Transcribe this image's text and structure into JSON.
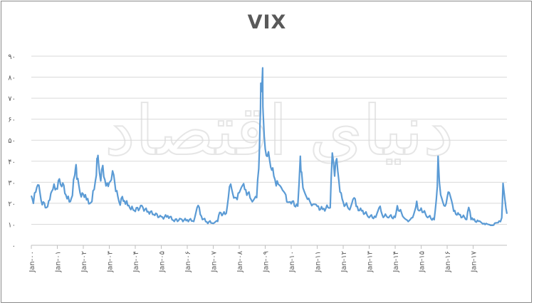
{
  "chart_data": {
    "type": "line",
    "title": "VIX",
    "xlabel": "",
    "ylabel": "",
    "ylim": [
      0,
      90
    ],
    "y_ticks": [
      "۰",
      "۱۰",
      "۲۰",
      "۳۰",
      "۴۰",
      "۵۰",
      "۶۰",
      "۷۰",
      "۸۰",
      "۹۰"
    ],
    "y_tick_values": [
      0,
      10,
      20,
      30,
      40,
      50,
      60,
      70,
      80,
      90
    ],
    "x_ticks": [
      "Jan-۰۰",
      "Jan-۰۱",
      "Jan-۰۲",
      "Jan-۰۳",
      "Jan-۰۴",
      "Jan-۰۵",
      "Jan-۰۶",
      "Jan-۰۷",
      "Jan-۰۸",
      "Jan-۰۹",
      "Jan-۱۰",
      "Jan-۱۱",
      "Jan-۱۲",
      "Jan-۱۳",
      "Jan-۱۴",
      "Jan-۱۵",
      "Jan-۱۶",
      "Jan-۱۷"
    ],
    "x_tick_years": [
      2000,
      2001,
      2002,
      2003,
      2004,
      2005,
      2006,
      2007,
      2008,
      2009,
      2010,
      2011,
      2012,
      2013,
      2014,
      2015,
      2016,
      2017
    ],
    "xlim": [
      2000.0,
      2018.3
    ],
    "grid": true,
    "series_color": "#5b9bd5",
    "series": [
      {
        "name": "",
        "x": [
          2000.0,
          2000.08,
          2000.17,
          2000.25,
          2000.33,
          2000.42,
          2000.5,
          2000.58,
          2000.67,
          2000.75,
          2000.83,
          2000.92,
          2001.0,
          2001.08,
          2001.17,
          2001.25,
          2001.33,
          2001.42,
          2001.5,
          2001.58,
          2001.67,
          2001.72,
          2001.75,
          2001.83,
          2001.92,
          2002.0,
          2002.08,
          2002.17,
          2002.25,
          2002.33,
          2002.42,
          2002.5,
          2002.55,
          2002.58,
          2002.67,
          2002.75,
          2002.83,
          2002.92,
          2003.0,
          2003.08,
          2003.17,
          2003.25,
          2003.33,
          2003.42,
          2003.5,
          2003.58,
          2003.67,
          2003.75,
          2003.83,
          2003.92,
          2004.0,
          2004.25,
          2004.5,
          2004.75,
          2005.0,
          2005.25,
          2005.5,
          2005.75,
          2006.0,
          2006.25,
          2006.42,
          2006.5,
          2006.75,
          2007.0,
          2007.17,
          2007.25,
          2007.5,
          2007.58,
          2007.67,
          2007.83,
          2007.92,
          2008.0,
          2008.17,
          2008.25,
          2008.5,
          2008.67,
          2008.75,
          2008.8,
          2008.83,
          2008.9,
          2008.92,
          2009.0,
          2009.08,
          2009.17,
          2009.25,
          2009.33,
          2009.42,
          2009.5,
          2009.67,
          2009.83,
          2010.0,
          2010.25,
          2010.35,
          2010.4,
          2010.5,
          2010.67,
          2010.83,
          2011.0,
          2011.25,
          2011.5,
          2011.58,
          2011.67,
          2011.75,
          2011.83,
          2011.92,
          2012.0,
          2012.25,
          2012.42,
          2012.5,
          2012.75,
          2013.0,
          2013.25,
          2013.42,
          2013.5,
          2013.75,
          2014.0,
          2014.08,
          2014.33,
          2014.5,
          2014.67,
          2014.83,
          2014.92,
          2015.0,
          2015.25,
          2015.5,
          2015.62,
          2015.65,
          2015.75,
          2015.92,
          2016.0,
          2016.08,
          2016.25,
          2016.5,
          2016.75,
          2016.83,
          2016.92,
          2017.0,
          2017.25,
          2017.42,
          2017.5,
          2017.67,
          2017.83,
          2018.0,
          2018.1,
          2018.15,
          2018.3
        ],
        "values": [
          24,
          21,
          26,
          30,
          24,
          20,
          19,
          18,
          20,
          25,
          28,
          27,
          28,
          30,
          29,
          27,
          24,
          22,
          21,
          25,
          34,
          40,
          33,
          27,
          24,
          23,
          24,
          21,
          20,
          22,
          27,
          35,
          43,
          38,
          32,
          36,
          31,
          28,
          30,
          33,
          34,
          27,
          22,
          20,
          22,
          21,
          20,
          19,
          18,
          17,
          17,
          18,
          16,
          15,
          13,
          14,
          12,
          12,
          12,
          12,
          20,
          14,
          11,
          11,
          12,
          15,
          15,
          24,
          29,
          22,
          23,
          24,
          28,
          26,
          22,
          24,
          35,
          55,
          75,
          80,
          60,
          45,
          45,
          40,
          38,
          32,
          30,
          28,
          25,
          22,
          21,
          18,
          40,
          33,
          25,
          22,
          19,
          18,
          17,
          19,
          43,
          35,
          40,
          30,
          24,
          20,
          18,
          24,
          18,
          16,
          14,
          13,
          18,
          14,
          14,
          13,
          18,
          14,
          12,
          14,
          20,
          16,
          17,
          14,
          12,
          28,
          40,
          23,
          18,
          24,
          25,
          16,
          14,
          13,
          18,
          13,
          12,
          11,
          10,
          11,
          10,
          10,
          11,
          13,
          30,
          15
        ]
      }
    ]
  },
  "watermark": {
    "text": "دنیای اقتصاد"
  }
}
